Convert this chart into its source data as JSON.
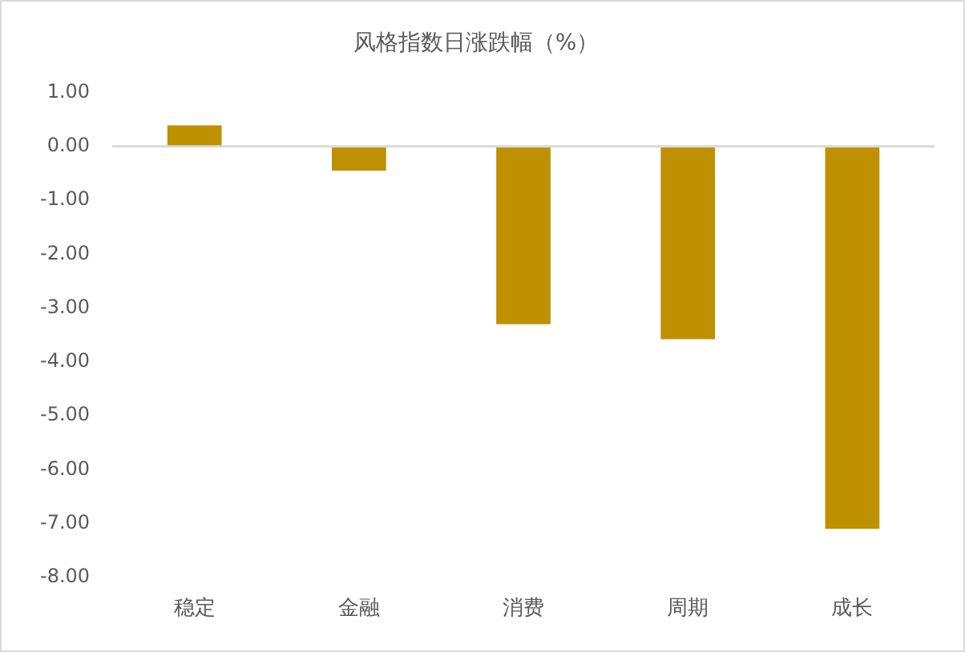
{
  "chart_data": {
    "type": "bar",
    "title": "风格指数日涨跌幅（%）",
    "categories": [
      "稳定",
      "金融",
      "消费",
      "周期",
      "成长"
    ],
    "values": [
      0.39,
      -0.45,
      -3.3,
      -3.58,
      -7.1
    ],
    "color": "#bf9000",
    "ylim": [
      -8,
      1
    ],
    "yticks": [
      {
        "value": 1,
        "label": "1.00"
      },
      {
        "value": 0,
        "label": "0.00"
      },
      {
        "value": -1,
        "label": "-1.00"
      },
      {
        "value": -2,
        "label": "-2.00"
      },
      {
        "value": -3,
        "label": "-3.00"
      },
      {
        "value": -4,
        "label": "-4.00"
      },
      {
        "value": -5,
        "label": "-5.00"
      },
      {
        "value": -6,
        "label": "-6.00"
      },
      {
        "value": -7,
        "label": "-7.00"
      },
      {
        "value": -8,
        "label": "-8.00"
      }
    ],
    "grid": false,
    "ref_lines": [
      {
        "axis": "y",
        "value": 0,
        "color": "#d9d9d9"
      }
    ],
    "legend": false
  }
}
